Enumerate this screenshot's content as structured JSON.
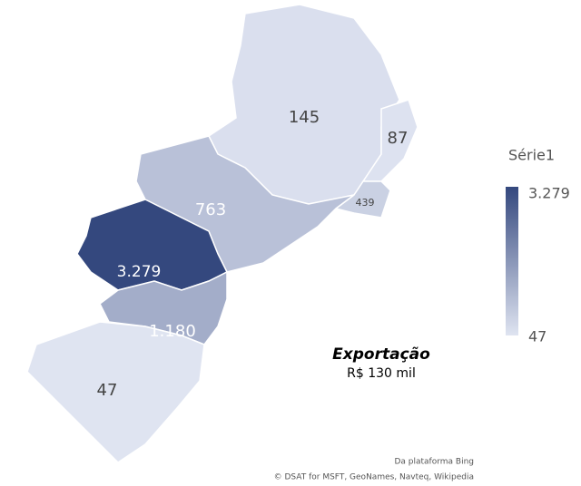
{
  "map": {
    "legend_title": "Série1",
    "scale": {
      "min": {
        "value": 47,
        "label": "47"
      },
      "max": {
        "value": 3279,
        "label": "3.279"
      },
      "colors": [
        "#dfe4f1",
        "#34487e"
      ]
    },
    "regions": [
      {
        "value": 145,
        "label": "145"
      },
      {
        "value": 87,
        "label": "87"
      },
      {
        "value": 439,
        "label": "439"
      },
      {
        "value": 763,
        "label": "763"
      },
      {
        "value": 3279,
        "label": "3.279"
      },
      {
        "value": 1180,
        "label": "1.180"
      },
      {
        "value": 47,
        "label": "47"
      }
    ],
    "annotation": {
      "title": "Exportação",
      "subtitle": "R$ 130 mil"
    },
    "attribution": [
      "Da plataforma Bing",
      "© DSAT for MSFT, GeoNames, Navteq, Wikipedia"
    ]
  }
}
